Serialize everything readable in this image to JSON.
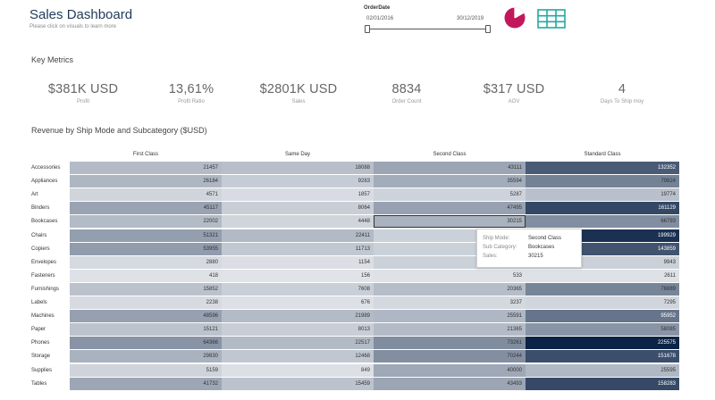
{
  "header": {
    "title": "Sales Dashboard",
    "subtitle": "Please click on visuals to learn more"
  },
  "order_date": {
    "label": "OrderDate",
    "start": "02/01/2016",
    "end": "30/12/2019"
  },
  "icons": {
    "pie": "pie-chart-icon",
    "table": "table-icon",
    "accent": "#c2185b",
    "table_color": "#27a8a0"
  },
  "key_metrics": {
    "title": "Key Metrics",
    "items": [
      {
        "value": "$381K USD",
        "label": "Profit"
      },
      {
        "value": "13,61%",
        "label": "Profit Ratio"
      },
      {
        "value": "$2801K USD",
        "label": "Sales"
      },
      {
        "value": "8834",
        "label": "Order Count"
      },
      {
        "value": "$317 USD",
        "label": "AOV"
      },
      {
        "value": "4",
        "label": "Days To Ship moy"
      }
    ]
  },
  "revenue": {
    "title": "Revenue by Ship Mode and Subcategory ($USD)",
    "columns": [
      "First Class",
      "Same Day",
      "Second Class",
      "Standard Class"
    ],
    "rows": [
      {
        "label": "Accessories",
        "values": [
          "21457",
          "18088",
          "43111",
          "132352"
        ]
      },
      {
        "label": "Appliances",
        "values": [
          "26184",
          "9283",
          "35594",
          "79824"
        ]
      },
      {
        "label": "Art",
        "values": [
          "4571",
          "1857",
          "5287",
          "19774"
        ]
      },
      {
        "label": "Binders",
        "values": [
          "45117",
          "8064",
          "47495",
          "161129"
        ]
      },
      {
        "label": "Bookcases",
        "values": [
          "22002",
          "4448",
          "30215",
          "66793"
        ]
      },
      {
        "label": "Chairs",
        "values": [
          "51321",
          "22411",
          "",
          "199929"
        ]
      },
      {
        "label": "Copiers",
        "values": [
          "53955",
          "11713",
          "",
          "143859"
        ]
      },
      {
        "label": "Envelopes",
        "values": [
          "2880",
          "1154",
          "",
          "9943"
        ]
      },
      {
        "label": "Fasteners",
        "values": [
          "418",
          "156",
          "533",
          "2611"
        ]
      },
      {
        "label": "Furnishings",
        "values": [
          "15852",
          "7608",
          "20365",
          "76889"
        ]
      },
      {
        "label": "Labels",
        "values": [
          "2238",
          "676",
          "3237",
          "7295"
        ]
      },
      {
        "label": "Machines",
        "values": [
          "48596",
          "21989",
          "25591",
          "95952"
        ]
      },
      {
        "label": "Paper",
        "values": [
          "15121",
          "8013",
          "21365",
          "58085"
        ]
      },
      {
        "label": "Phones",
        "values": [
          "64366",
          "22517",
          "73261",
          "225575"
        ]
      },
      {
        "label": "Storage",
        "values": [
          "29830",
          "12468",
          "70244",
          "151678"
        ]
      },
      {
        "label": "Supplies",
        "values": [
          "5159",
          "849",
          "40000",
          "25595"
        ]
      },
      {
        "label": "Tables",
        "values": [
          "41732",
          "15459",
          "43493",
          "158283"
        ]
      }
    ],
    "selected": {
      "row": 4,
      "col": 2
    }
  },
  "tooltip": {
    "ship_mode_key": "Ship Mode:",
    "ship_mode_value": "Second Class",
    "sub_category_key": "Sub Category:",
    "sub_category_value": "Bookcases",
    "sales_key": "Sales:",
    "sales_value": "30215"
  },
  "colors": {
    "low": "#eef0f3",
    "high": "#0b2346",
    "title": "#1f3a5a"
  }
}
